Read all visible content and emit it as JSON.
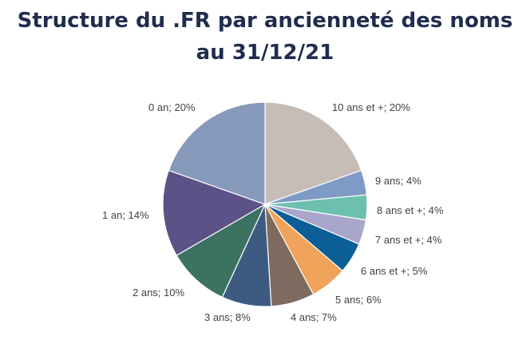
{
  "title_line1": "Structure du .FR par ancienneté des noms",
  "title_line2": "au 31/12/21",
  "chart_data": {
    "type": "pie",
    "title": "Structure du .FR par ancienneté des noms au 31/12/21",
    "start": "12 o'clock",
    "direction": "clockwise",
    "slices": [
      {
        "label": "10 ans et +; 20%",
        "category": "10 ans et +",
        "value": 20,
        "color": "#c5bdb6"
      },
      {
        "label": "9 ans; 4%",
        "category": "9 ans",
        "value": 4,
        "color": "#7e9bc6"
      },
      {
        "label": "8 ans et +; 4%",
        "category": "8 ans et +",
        "value": 4,
        "color": "#6cc0ad"
      },
      {
        "label": "7 ans et +; 4%",
        "category": "7 ans et +",
        "value": 4,
        "color": "#a9a6cc"
      },
      {
        "label": "6 ans et +; 5%",
        "category": "6 ans et +",
        "value": 5,
        "color": "#0b5e96"
      },
      {
        "label": "5 ans; 6%",
        "category": "5 ans",
        "value": 6,
        "color": "#f0a35a"
      },
      {
        "label": "4 ans; 7%",
        "category": "4 ans",
        "value": 7,
        "color": "#7e6a5f"
      },
      {
        "label": "3 ans; 8%",
        "category": "3 ans",
        "value": 8,
        "color": "#3d5a80"
      },
      {
        "label": "2 ans; 10%",
        "category": "2 ans",
        "value": 10,
        "color": "#3b7262"
      },
      {
        "label": "1 an; 14%",
        "category": "1 an",
        "value": 14,
        "color": "#5d5287"
      },
      {
        "label": "0 an; 20%",
        "category": "0 an",
        "value": 20,
        "color": "#8799ba"
      }
    ]
  }
}
